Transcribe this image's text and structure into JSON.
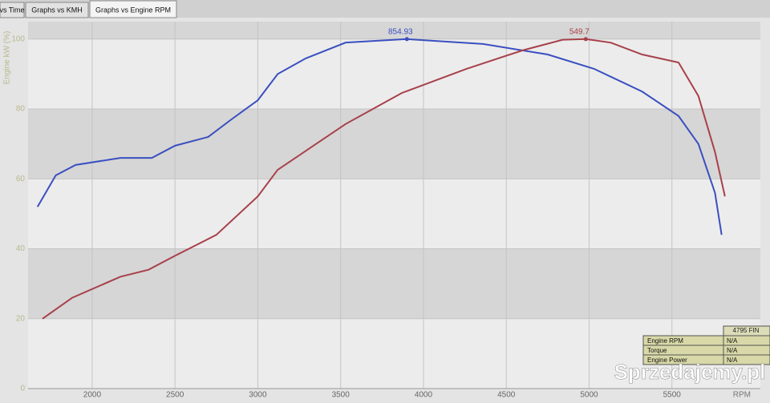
{
  "tabs": [
    "vs Time",
    "Graphs vs KMH",
    "Graphs vs Engine RPM"
  ],
  "chart_data": {
    "type": "line",
    "y_label": "Engine kW (%)",
    "x_label": "RPM",
    "xlim": [
      1613,
      6034
    ],
    "ylim": [
      0,
      105
    ],
    "xticks": [
      2000,
      2500,
      3000,
      3500,
      4000,
      4500,
      5000,
      5500
    ],
    "yticks": [
      0,
      20,
      40,
      60,
      80,
      100
    ],
    "grid": true,
    "series": [
      {
        "color": "#3a4fc0",
        "x": [
          1670,
          1780,
          1900,
          2170,
          2360,
          2500,
          2700,
          2840,
          3000,
          3120,
          3290,
          3530,
          3900,
          4360,
          4750,
          5030,
          5320,
          5540,
          5660,
          5760,
          5800
        ],
        "values": [
          52,
          61,
          64,
          66,
          66,
          69.5,
          72,
          77,
          82.5,
          90,
          94.5,
          99,
          100,
          98.6,
          95.6,
          91.5,
          85,
          78,
          70,
          56,
          44
        ]
      },
      {
        "color": "#a8404a",
        "x": [
          1700,
          1880,
          2170,
          2340,
          2500,
          2750,
          3000,
          3120,
          3530,
          3870,
          4260,
          4600,
          4840,
          4980,
          5130,
          5320,
          5540,
          5660,
          5760,
          5820
        ],
        "values": [
          20,
          26,
          32,
          34,
          38,
          44,
          55,
          62.6,
          75.7,
          84.6,
          91.5,
          96.8,
          99.8,
          100,
          99,
          95.6,
          93.3,
          83.7,
          67.7,
          55
        ]
      }
    ],
    "annotations": [
      {
        "text": "854.93",
        "x": 3900,
        "y": 100,
        "color": "#3a4fc0"
      },
      {
        "text": "549.7",
        "x": 4980,
        "y": 100,
        "color": "#a8404a"
      }
    ]
  },
  "info_panel": {
    "header": "4795 FIN",
    "rows": [
      [
        "Engine RPM",
        "N/A"
      ],
      [
        "Torque",
        "N/A"
      ],
      [
        "Engine Power",
        "N/A"
      ]
    ]
  },
  "watermark": "Sprzedajemy.pl"
}
